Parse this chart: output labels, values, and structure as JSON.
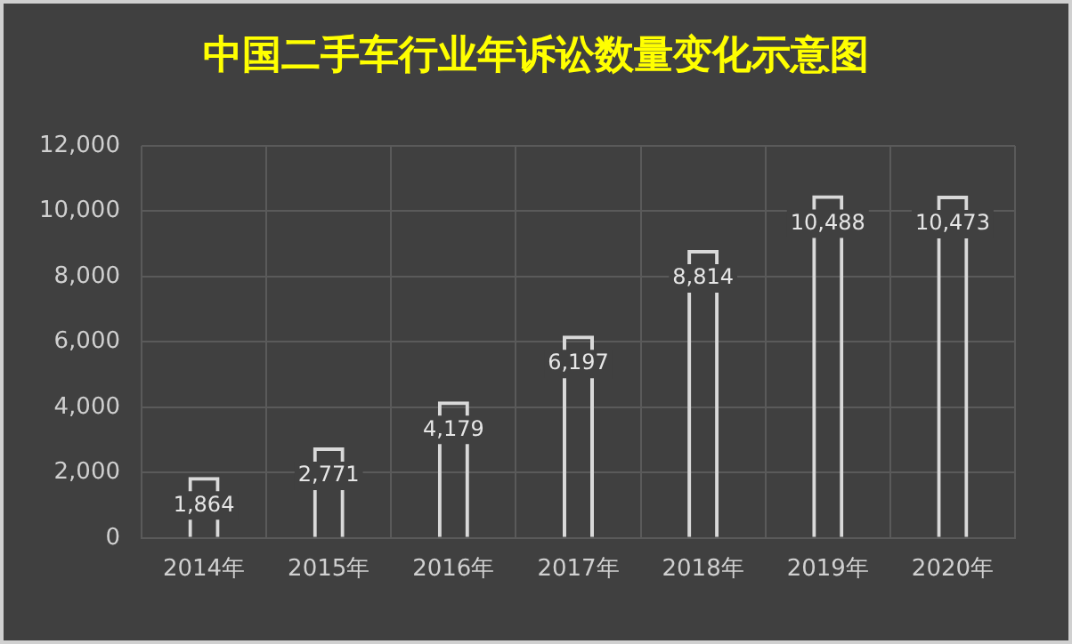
{
  "chart_data": {
    "type": "bar",
    "title": "中国二手车行业年诉讼数量变化示意图",
    "categories": [
      "2014年",
      "2015年",
      "2016年",
      "2017年",
      "2018年",
      "2019年",
      "2020年"
    ],
    "values": [
      1864,
      2771,
      4179,
      6197,
      8814,
      10488,
      10473
    ],
    "color": "#d9d9d9",
    "ylim": [
      0,
      12000
    ],
    "yticks": [
      {
        "value": 0,
        "label": "0"
      },
      {
        "value": 2000,
        "label": "2,000"
      },
      {
        "value": 4000,
        "label": "4,000"
      },
      {
        "value": 6000,
        "label": "6,000"
      },
      {
        "value": 8000,
        "label": "8,000"
      },
      {
        "value": 10000,
        "label": "10,000"
      },
      {
        "value": 12000,
        "label": "12,000"
      }
    ],
    "value_labels": [
      "1,864",
      "2,771",
      "4,179",
      "6,197",
      "8,814",
      "10,488",
      "10,473"
    ],
    "grid": true
  }
}
